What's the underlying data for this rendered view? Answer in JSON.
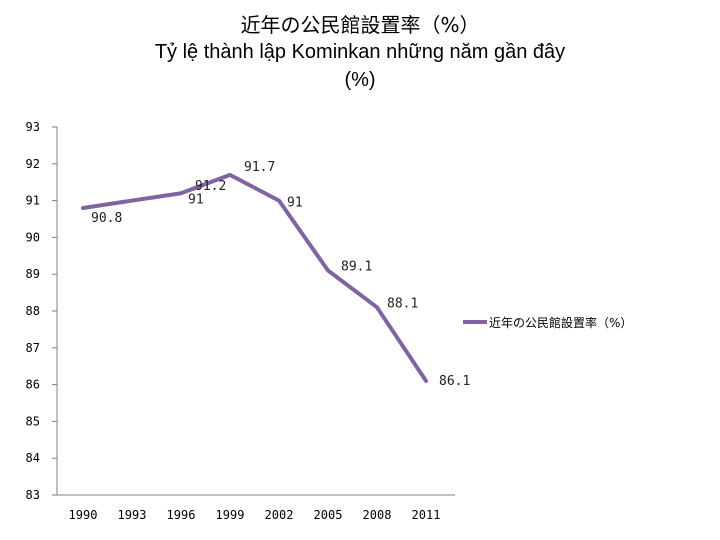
{
  "chart_data": {
    "type": "line",
    "title": "近年の公民館設置率（%）",
    "subtitle": "Tỷ lệ thành lập Kominkan những năm gần đây",
    "subtitle_unit": "(%)",
    "x": [
      "1990",
      "1993",
      "1996",
      "1999",
      "2002",
      "2005",
      "2008",
      "2011"
    ],
    "series": [
      {
        "name": "近年の公民館設置率（%）",
        "values": [
          90.8,
          91,
          91.2,
          91.7,
          91,
          89.1,
          88.1,
          86.1
        ],
        "labels": [
          "90.8",
          "91",
          "91.2",
          "91.7",
          "91",
          "89.1",
          "88.1",
          "86.1"
        ]
      }
    ],
    "y_ticks": [
      "83",
      "84",
      "85",
      "86",
      "87",
      "88",
      "89",
      "90",
      "91",
      "92",
      "93"
    ],
    "ylim": [
      83,
      93
    ],
    "grid": false,
    "legend_position": "right",
    "line_color": "#8064a2"
  }
}
